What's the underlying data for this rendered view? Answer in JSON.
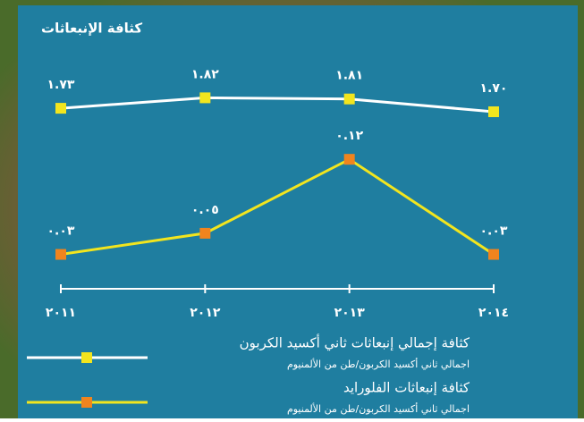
{
  "chart_data": {
    "type": "line",
    "title": "كثافة الإنبعاثات",
    "categories": [
      "٢٠١١",
      "٢٠١٢",
      "٢٠١٣",
      "٢٠١٤"
    ],
    "ylim": [
      0.2,
      2.2
    ],
    "y2lim": [
      0,
      0.22
    ],
    "series": [
      {
        "name": "كثافة إجمالي إنبعاثات ثاني أكسيد الكربون",
        "unit": "اجمالي ثاني أكسيد الكربون/طن من الألمنيوم",
        "color": "#ffffff",
        "marker_color": "#f2e51e",
        "values": [
          1.73,
          1.82,
          1.81,
          1.7
        ],
        "value_labels": [
          "١.٧٣",
          "١.٨٢",
          "١.٨١",
          "١.٧٠"
        ]
      },
      {
        "name": "كثافة إنبعاثات الفلورايد",
        "unit": "اجمالي ثاني أكسيد الكربون/طن من الألمنيوم",
        "color": "#f2e51e",
        "marker_color": "#f0841e",
        "axis": "y2",
        "values": [
          0.03,
          0.05,
          0.12,
          0.03
        ],
        "value_labels": [
          "٠.٠٣",
          "٠.٠٥",
          "٠.١٢",
          "٠.٠٣"
        ]
      }
    ]
  }
}
